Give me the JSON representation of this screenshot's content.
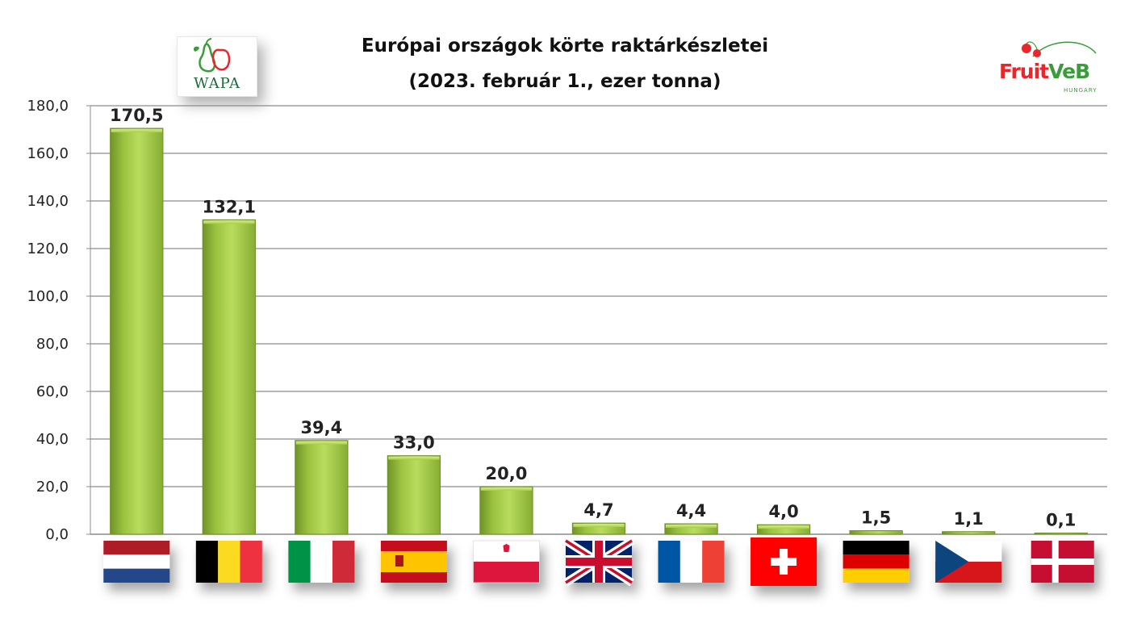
{
  "header": {
    "title_line1": "Európai országok körte raktárkészletei",
    "title_line2": "(2023. február 1., ezer tonna)"
  },
  "logos": {
    "left_text": "WAPA",
    "right_text_red": "Fruit",
    "right_text_green": "VeB",
    "right_subtext": "HUNGARY"
  },
  "chart_data": {
    "type": "bar",
    "title": "Európai országok körte raktárkészletei (2023. február 1., ezer tonna)",
    "categories": [
      "Netherlands",
      "Belgium",
      "Italy",
      "Spain",
      "Poland",
      "United Kingdom",
      "France",
      "Switzerland",
      "Germany",
      "Czech Republic",
      "Denmark"
    ],
    "values": [
      170.5,
      132.1,
      39.4,
      33.0,
      20.0,
      4.7,
      4.4,
      4.0,
      1.5,
      1.1,
      0.1
    ],
    "value_labels": [
      "170,5",
      "132,1",
      "39,4",
      "33,0",
      "20,0",
      "4,7",
      "4,4",
      "4,0",
      "1,5",
      "1,1",
      "0,1"
    ],
    "category_display": "flag icons",
    "yticks": [
      "0,0",
      "20,0",
      "40,0",
      "60,0",
      "80,0",
      "100,0",
      "120,0",
      "140,0",
      "160,0",
      "180,0"
    ],
    "ylim": [
      0,
      180
    ],
    "ytick_step": 20,
    "grid": true,
    "legend": "none",
    "bar_color": "#9bc23f",
    "flags": [
      "netherlands-flag-icon",
      "belgium-flag-icon",
      "italy-flag-icon",
      "spain-flag-icon",
      "poland-flag-icon",
      "uk-flag-icon",
      "france-flag-icon",
      "switzerland-flag-icon",
      "germany-flag-icon",
      "czech-flag-icon",
      "denmark-flag-icon"
    ]
  }
}
